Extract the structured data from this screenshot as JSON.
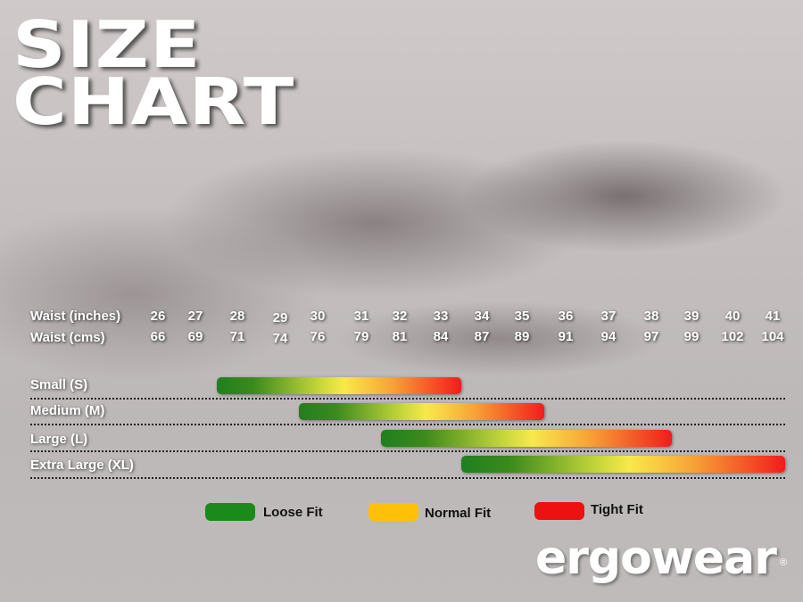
{
  "title": {
    "line1": "SIZE",
    "line2": "CHART"
  },
  "chart_data": {
    "type": "bar",
    "orientation": "horizontal-range",
    "row_headers": [
      "Waist (inches)",
      "Waist (cms)"
    ],
    "waist_inches": [
      26,
      27,
      28,
      29,
      30,
      31,
      32,
      33,
      34,
      35,
      36,
      37,
      38,
      39,
      40,
      41
    ],
    "waist_cms": [
      66,
      69,
      71,
      74,
      76,
      79,
      81,
      84,
      87,
      89,
      91,
      94,
      97,
      99,
      102,
      104
    ],
    "categories": [
      "Small (S)",
      "Medium (M)",
      "Large (L)",
      "Extra Large (XL)"
    ],
    "ranges_inches": [
      [
        27.5,
        33.5
      ],
      [
        29.5,
        35.5
      ],
      [
        31.5,
        38.5
      ],
      [
        33.5,
        41.5
      ]
    ],
    "gradient": "loose (green) → normal (yellow) → tight (red)"
  },
  "legend": [
    {
      "label": "Loose Fit",
      "color": "#1a8a1a"
    },
    {
      "label": "Normal Fit",
      "color": "#ffc107"
    },
    {
      "label": "Tight Fit",
      "color": "#ee1111"
    }
  ],
  "brand": {
    "logo": "ergowear",
    "registered": "®"
  }
}
